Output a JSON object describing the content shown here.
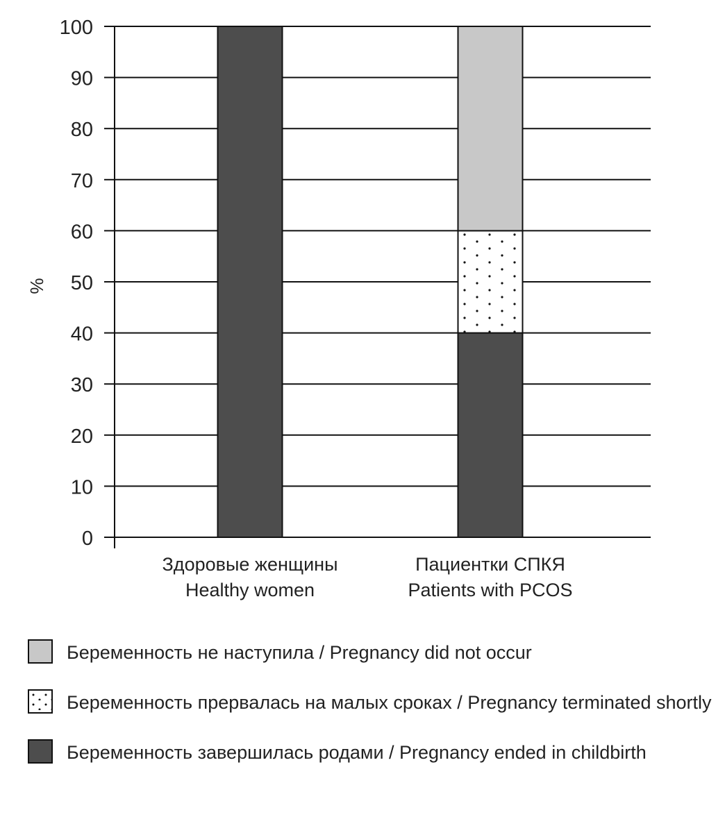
{
  "chart_data": {
    "type": "bar",
    "stacked": true,
    "title": "",
    "xlabel": "",
    "ylabel": "%",
    "ylim": [
      0,
      100
    ],
    "yticks": [
      "0",
      "10",
      "20",
      "30",
      "40",
      "50",
      "60",
      "70",
      "80",
      "90",
      "100"
    ],
    "grid": true,
    "categories": [
      [
        "Здоровые женщины",
        "Healthy women"
      ],
      [
        "Пациентки СПКЯ",
        "Patients with PCOS"
      ]
    ],
    "series": [
      {
        "name": "Беременность завершилась родами / Pregnancy ended in childbirth",
        "values": [
          100,
          40
        ],
        "color": "#4d4d4d",
        "pattern": "solid"
      },
      {
        "name": "Беременность прервалась на малых сроках / Pregnancy terminated shortly",
        "values": [
          0,
          20
        ],
        "color": "#ffffff",
        "pattern": "dots"
      },
      {
        "name": "Беременность не наступила / Pregnancy did not occur",
        "values": [
          0,
          40
        ],
        "color": "#c8c8c8",
        "pattern": "solid"
      }
    ],
    "legend_order": [
      2,
      1,
      0
    ],
    "legend_position": "bottom-left"
  }
}
